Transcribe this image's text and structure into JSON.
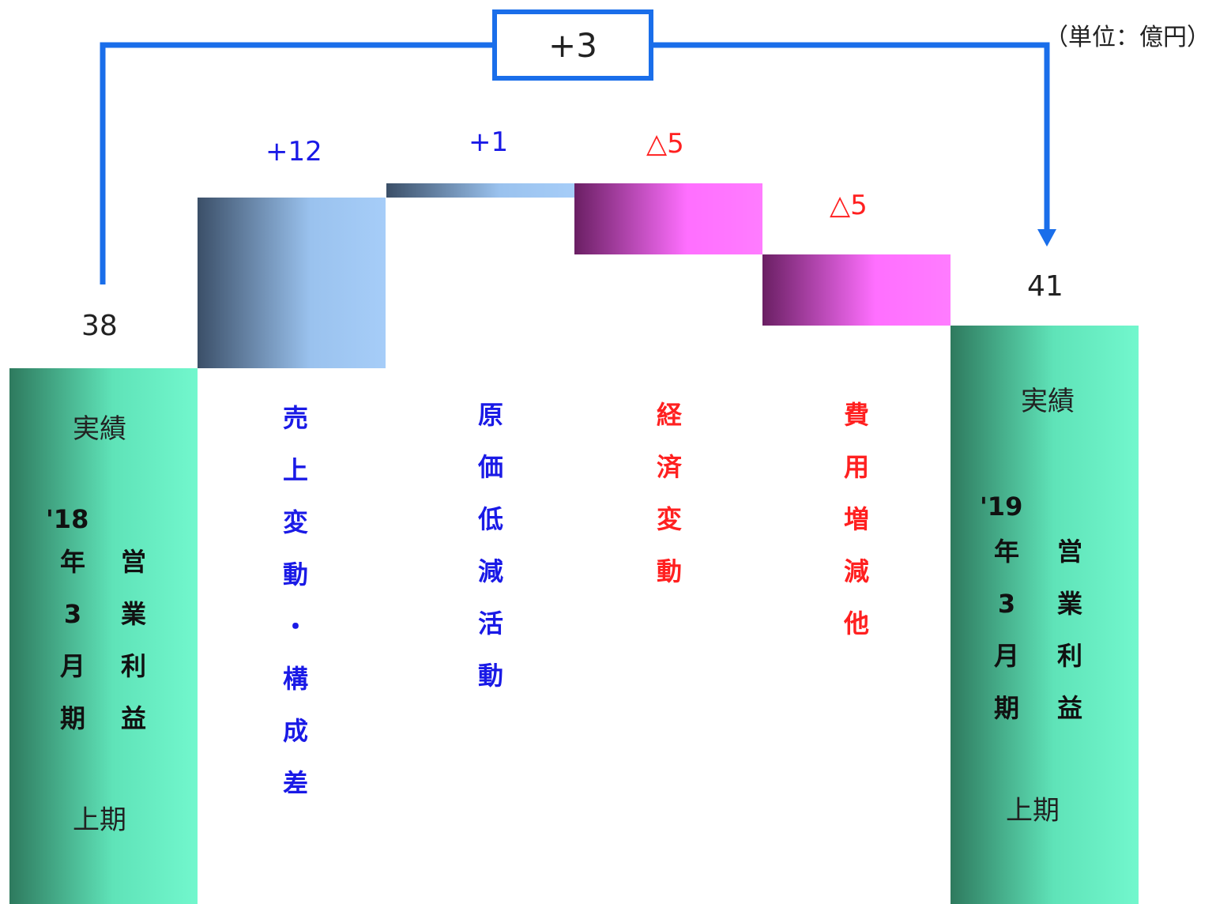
{
  "unit_label": "（単位：億円）",
  "total_change": "+3",
  "colors": {
    "start_end": "#6cf2c8",
    "increase": "#a8ccf5",
    "decrease": "#ff77ff",
    "bracket": "#1a6eea",
    "label_increase": "#1a1ae6",
    "label_decrease": "#ff2020"
  },
  "start_bar": {
    "value_label": "38",
    "top_text": "実績",
    "year": "'18",
    "col1": [
      "年",
      "3",
      "月",
      "期"
    ],
    "col2": [
      "営",
      "業",
      "利",
      "益"
    ],
    "bottom_text": "上期"
  },
  "end_bar": {
    "value_label": "41",
    "top_text": "実績",
    "year": "'19",
    "col1": [
      "年",
      "3",
      "月",
      "期"
    ],
    "col2": [
      "営",
      "業",
      "利",
      "益"
    ],
    "bottom_text": "上期"
  },
  "steps": [
    {
      "delta_label": "+12",
      "chars": [
        "売",
        "上",
        "変",
        "動",
        "・",
        "構",
        "成",
        "差"
      ]
    },
    {
      "delta_label": "+1",
      "chars": [
        "原",
        "価",
        "低",
        "減",
        "活",
        "動"
      ]
    },
    {
      "delta_label": "△5",
      "chars": [
        "経",
        "済",
        "変",
        "動"
      ]
    },
    {
      "delta_label": "△5",
      "chars": [
        "費",
        "用",
        "増",
        "減",
        "他"
      ]
    }
  ],
  "chart_data": {
    "type": "bar",
    "subtype": "waterfall",
    "title": "",
    "unit": "億円",
    "start": {
      "value": 38
    },
    "steps": [
      {
        "value": 12
      },
      {
        "value": 1
      },
      {
        "value": -5
      },
      {
        "value": -5
      }
    ],
    "end": {
      "value": 41
    },
    "total_change": 3
  }
}
